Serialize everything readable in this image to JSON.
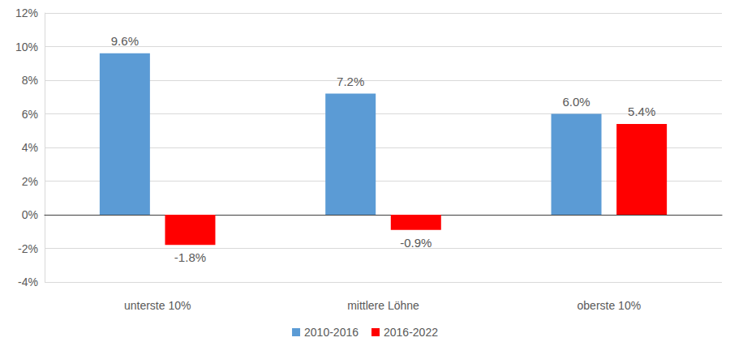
{
  "chart_data": {
    "type": "bar",
    "categories": [
      "unterste 10%",
      "mittlere Löhne",
      "oberste 10%"
    ],
    "series": [
      {
        "name": "2010-2016",
        "color": "#5b9bd5",
        "values": [
          9.6,
          7.2,
          6.0
        ],
        "value_labels": [
          "9.6%",
          "7.2%",
          "6.0%"
        ]
      },
      {
        "name": "2016-2022",
        "color": "#ff0000",
        "values": [
          -1.8,
          -0.9,
          5.4
        ],
        "value_labels": [
          "-1.8%",
          "-0.9%",
          "5.4%"
        ]
      }
    ],
    "ylim": [
      -4,
      12
    ],
    "yticks": [
      {
        "value": -4,
        "label": "-4%"
      },
      {
        "value": -2,
        "label": "-2%"
      },
      {
        "value": 0,
        "label": "0%"
      },
      {
        "value": 2,
        "label": "2%"
      },
      {
        "value": 4,
        "label": "4%"
      },
      {
        "value": 6,
        "label": "6%"
      },
      {
        "value": 8,
        "label": "8%"
      },
      {
        "value": 10,
        "label": "10%"
      },
      {
        "value": 12,
        "label": "12%"
      }
    ],
    "grid": true,
    "legend": "bottom",
    "data_labels": true
  }
}
